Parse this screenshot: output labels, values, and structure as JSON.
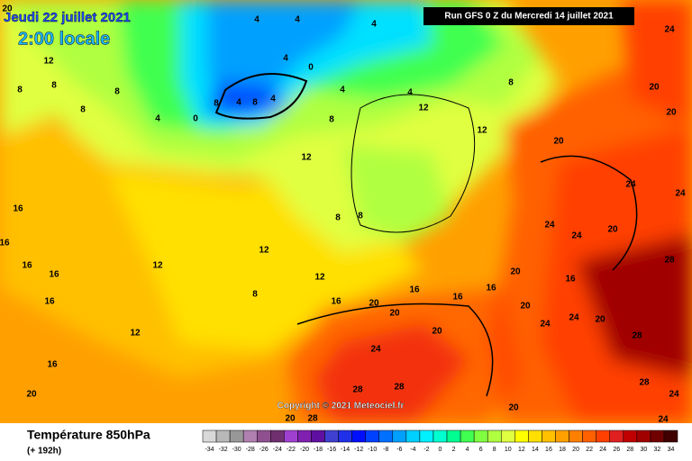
{
  "header": {
    "date": "Jeudi 22 juillet 2021",
    "time": "2:00 locale",
    "run": "Run GFS 0 Z du Mercredi 14 juillet 2021"
  },
  "copyright": "Copyright © 2021 Meteociel.fr",
  "footer": {
    "title": "Température 850hPa",
    "subtitle": "(+ 192h)"
  },
  "legend": {
    "values": [
      -34,
      -32,
      -30,
      -28,
      -26,
      -24,
      -22,
      -20,
      -18,
      -16,
      -14,
      -12,
      -10,
      -8,
      -6,
      -4,
      -2,
      0,
      2,
      4,
      6,
      8,
      10,
      12,
      14,
      16,
      18,
      20,
      22,
      24,
      26,
      28,
      30,
      32,
      34
    ],
    "colors": [
      "#d8d8d8",
      "#b8b8b8",
      "#989898",
      "#b080b0",
      "#905090",
      "#703070",
      "#a040d0",
      "#8020b0",
      "#6010a0",
      "#4040d0",
      "#2030e8",
      "#0010ff",
      "#0040ff",
      "#0070ff",
      "#00a0ff",
      "#00d0ff",
      "#00f0ff",
      "#00ffd0",
      "#00ff90",
      "#40ff50",
      "#80ff40",
      "#b0ff40",
      "#e0ff40",
      "#ffff00",
      "#ffe000",
      "#ffc000",
      "#ffa000",
      "#ff8000",
      "#ff6000",
      "#ff4000",
      "#e02020",
      "#c00000",
      "#a00000",
      "#700000",
      "#400000"
    ]
  },
  "contour_labels": [
    "20",
    "12",
    "8",
    "8",
    "8",
    "8",
    "4",
    "0",
    "8",
    "4",
    "8",
    "4",
    "4",
    "0",
    "4",
    "4",
    "4",
    "4",
    "4",
    "8",
    "12",
    "12",
    "8",
    "20",
    "24",
    "24",
    "24",
    "20",
    "20",
    "16",
    "16",
    "16",
    "16",
    "16",
    "12",
    "12",
    "8",
    "12",
    "12",
    "16",
    "20",
    "20",
    "16",
    "16",
    "16",
    "20",
    "24",
    "24",
    "20",
    "28",
    "28",
    "16",
    "24",
    "28",
    "28",
    "20",
    "20",
    "20",
    "12",
    "16",
    "20",
    "28",
    "28",
    "24",
    "24",
    "24",
    "24",
    "20",
    "20",
    "8",
    "8"
  ]
}
